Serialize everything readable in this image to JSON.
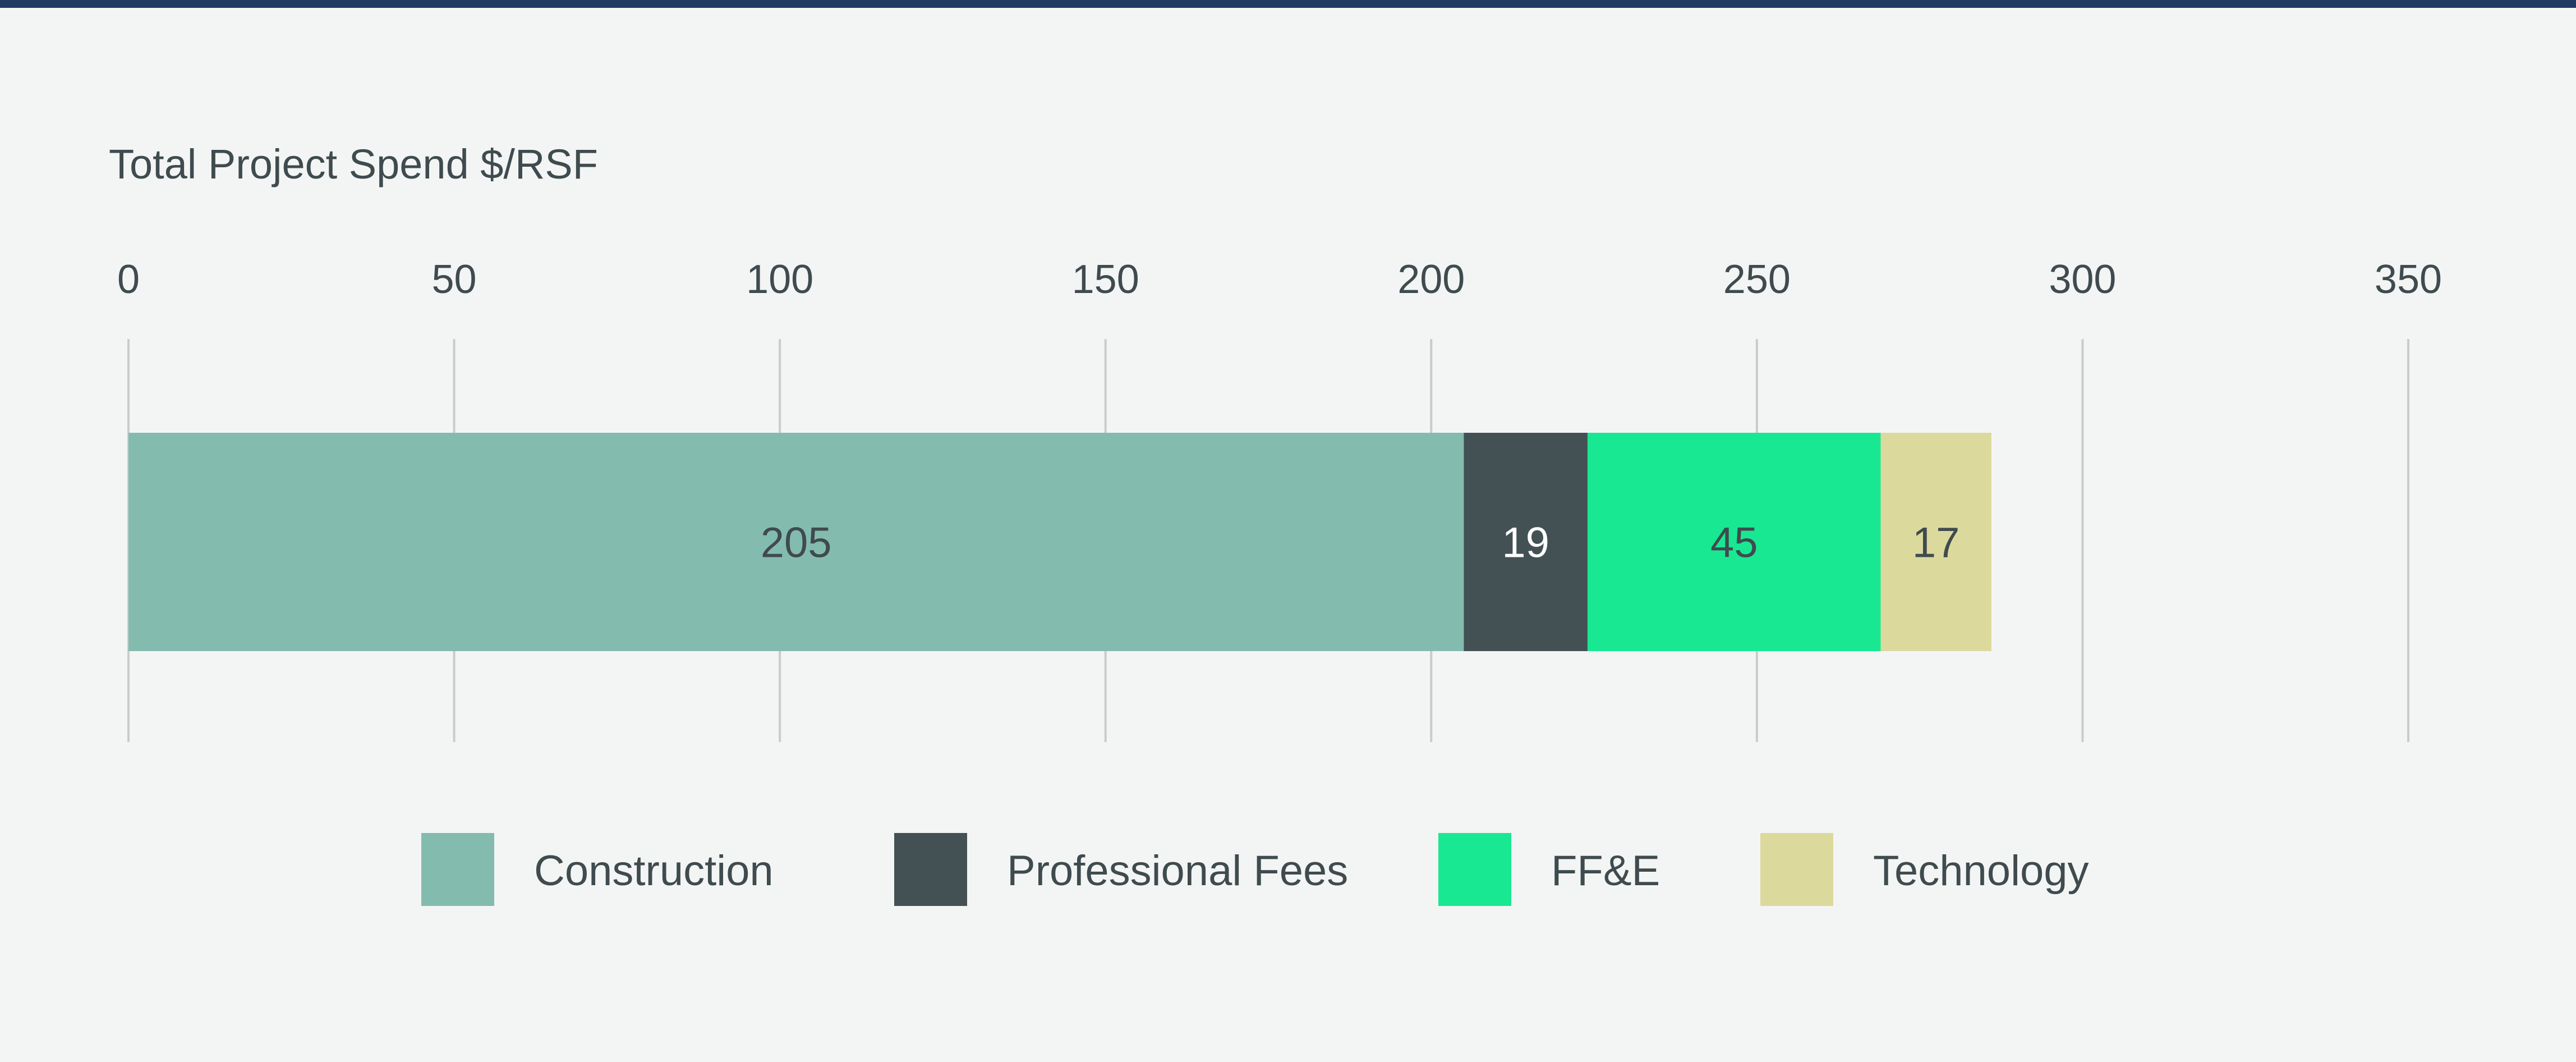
{
  "chart_data": {
    "type": "bar",
    "orientation": "horizontal",
    "stacked": true,
    "title": "Total Project Spend $/RSF",
    "xlim": [
      0,
      350
    ],
    "x_ticks": [
      "0",
      "50",
      "100",
      "150",
      "200",
      "250",
      "300",
      "350"
    ],
    "grid": true,
    "legend_position": "bottom-center",
    "series": [
      {
        "name": "Construction",
        "value": 205,
        "color": "#83bcae",
        "label_color": "#3f4b4e"
      },
      {
        "name": "Professional Fees",
        "value": 19,
        "color": "#435154",
        "label_color": "#ffffff"
      },
      {
        "name": "FF&E",
        "value": 45,
        "color": "#19e892",
        "label_color": "#3f4b4e"
      },
      {
        "name": "Technology",
        "value": 17,
        "color": "#dcd99d",
        "label_color": "#3f4b4e"
      }
    ]
  },
  "colors": {
    "top_rule": "#1f3a63",
    "background": "#f3f5f4",
    "text": "#3f4b4e",
    "grid": "#c8cccb"
  }
}
